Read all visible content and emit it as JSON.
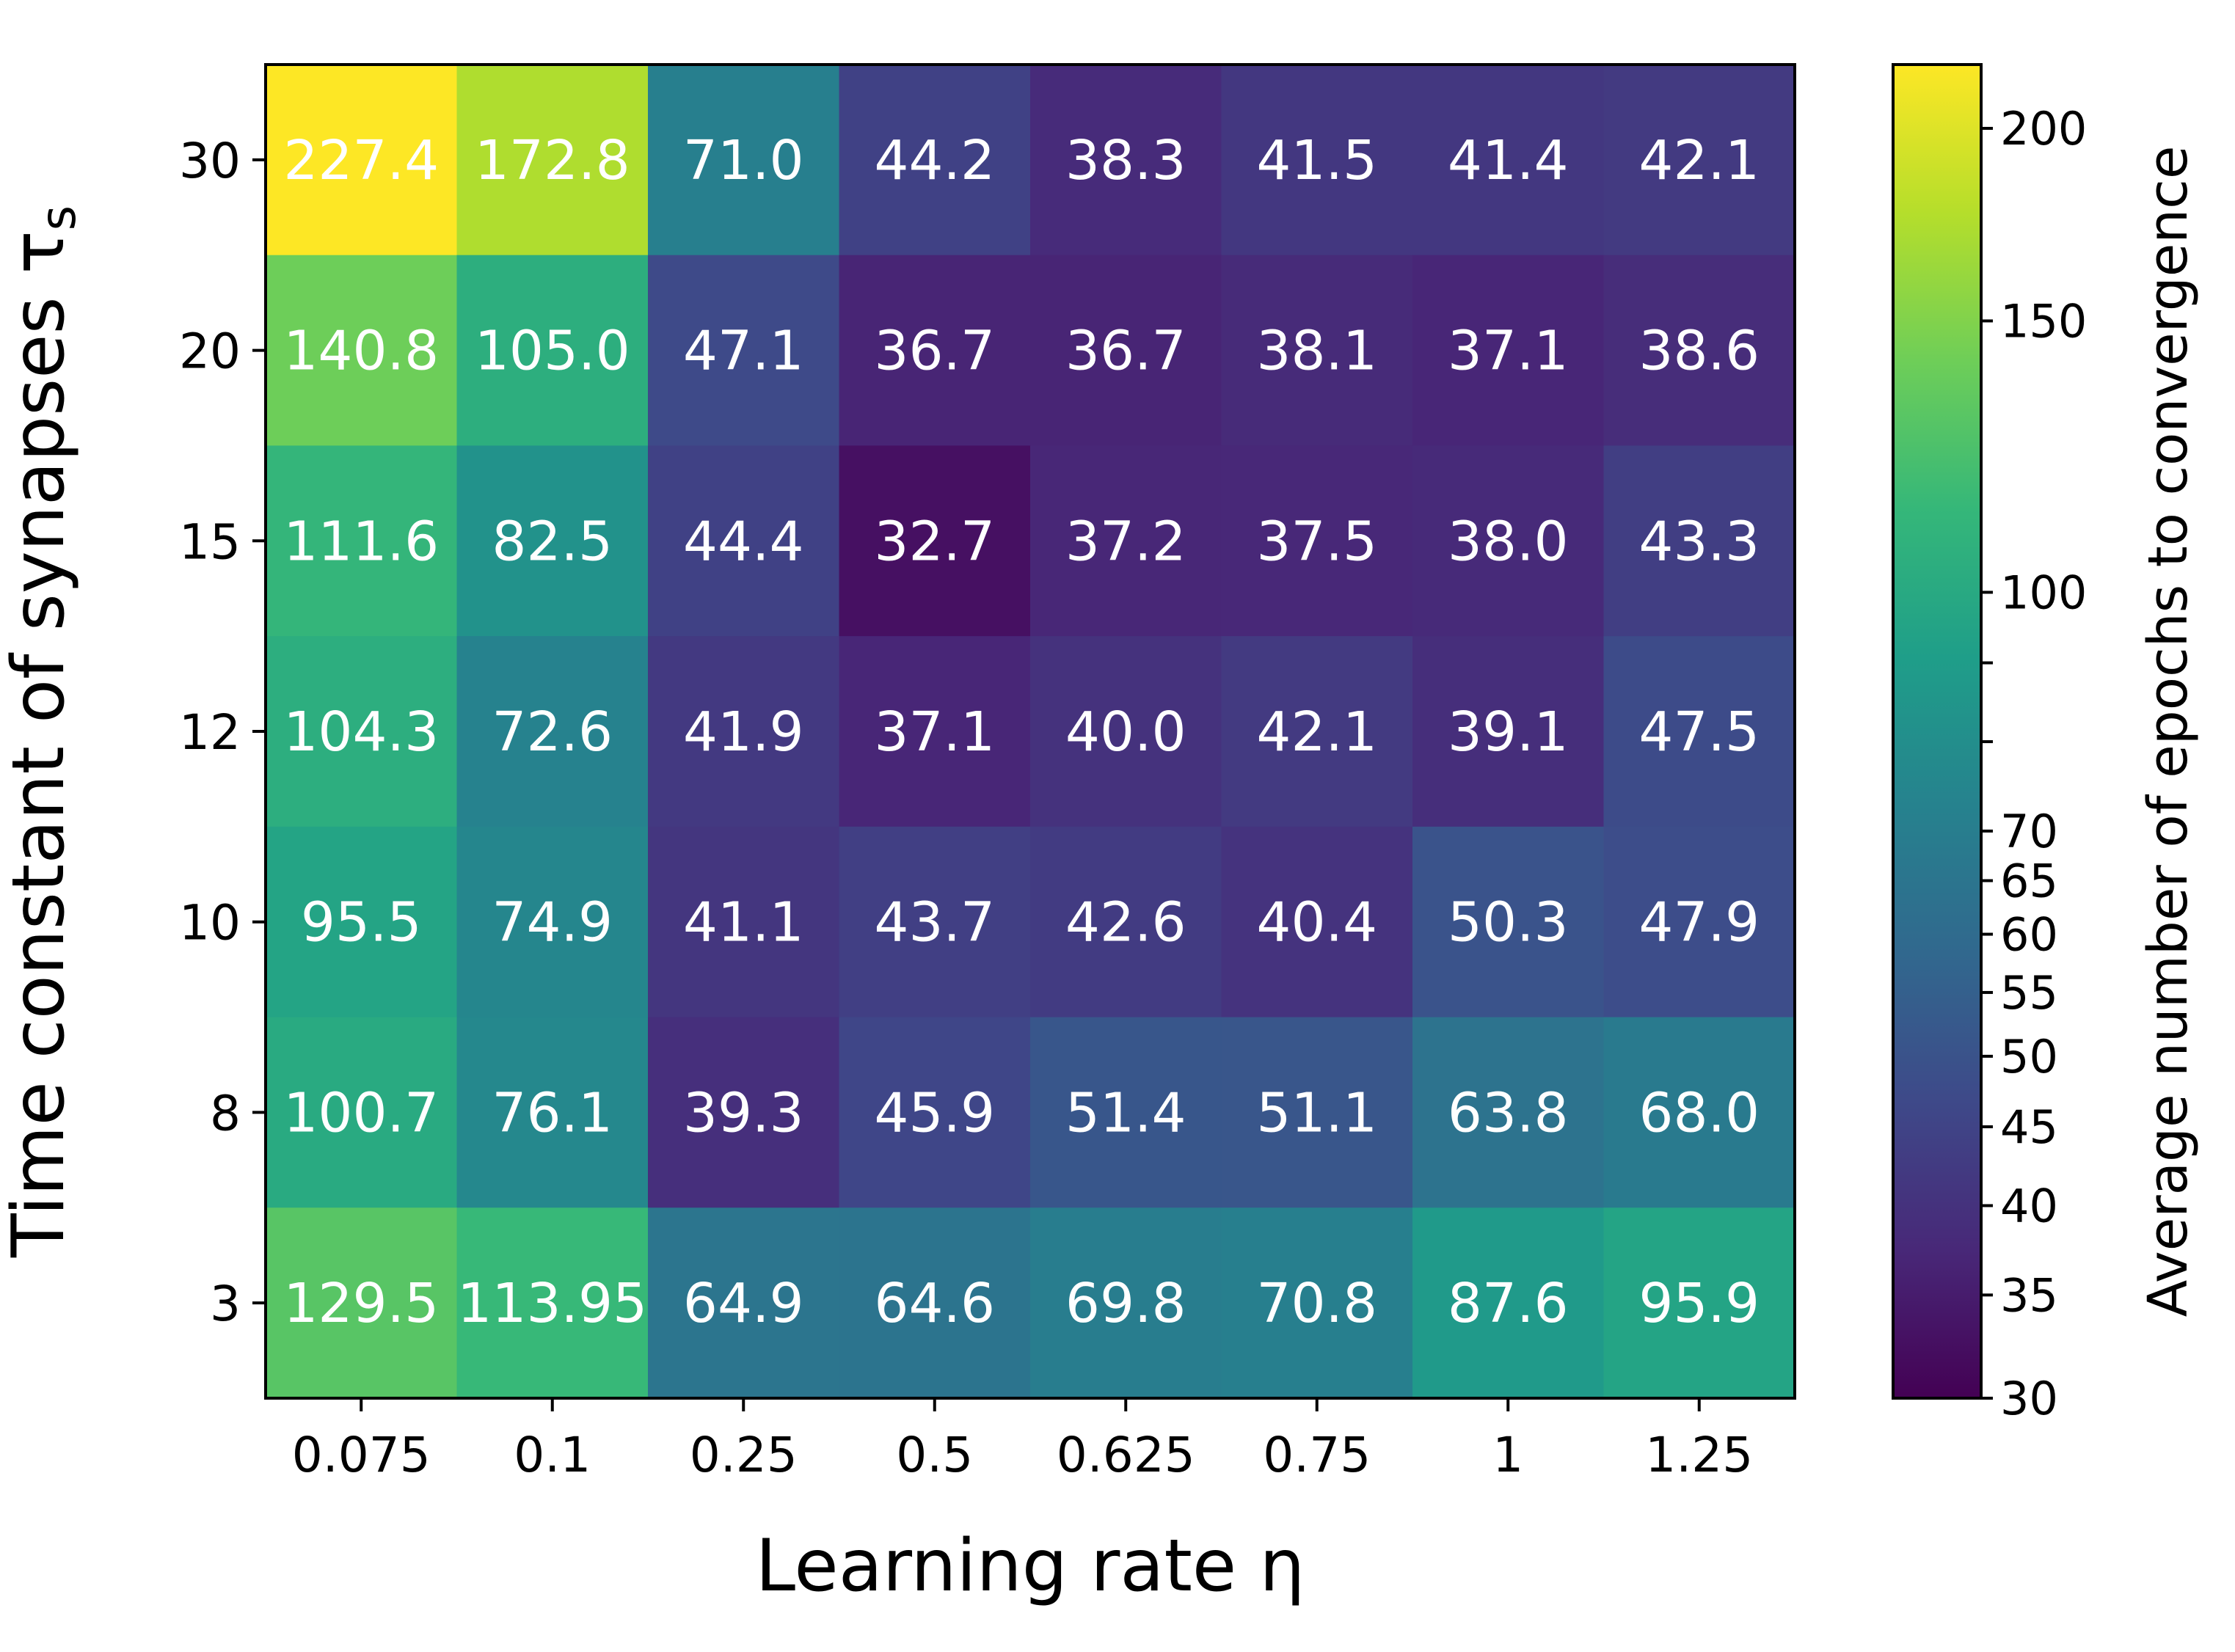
{
  "chart_data": {
    "type": "heatmap",
    "title": "",
    "xlabel": "Learning rate η",
    "ylabel": "Time constant of synapses τ",
    "ylabel_sub": "s",
    "x_categories": [
      "0.075",
      "0.1",
      "0.25",
      "0.5",
      "0.625",
      "0.75",
      "1",
      "1.25"
    ],
    "y_categories": [
      "30",
      "20",
      "15",
      "12",
      "10",
      "8",
      "3"
    ],
    "values": [
      [
        227.4,
        172.8,
        71.0,
        44.2,
        38.3,
        41.5,
        41.4,
        42.1
      ],
      [
        140.8,
        105.0,
        47.1,
        36.7,
        36.7,
        38.1,
        37.1,
        38.6
      ],
      [
        111.6,
        82.5,
        44.4,
        32.7,
        37.2,
        37.5,
        38.0,
        43.3
      ],
      [
        104.3,
        72.6,
        41.9,
        37.1,
        40.0,
        42.1,
        39.1,
        47.5
      ],
      [
        95.5,
        74.9,
        41.1,
        43.7,
        42.6,
        40.4,
        50.3,
        47.9
      ],
      [
        100.7,
        76.1,
        39.3,
        45.9,
        51.4,
        51.1,
        63.8,
        68.0
      ],
      [
        129.5,
        113.95,
        64.9,
        64.6,
        69.8,
        70.8,
        87.6,
        95.9
      ]
    ],
    "cell_labels": [
      [
        "227.4",
        "172.8",
        "71.0",
        "44.2",
        "38.3",
        "41.5",
        "41.4",
        "42.1"
      ],
      [
        "140.8",
        "105.0",
        "47.1",
        "36.7",
        "36.7",
        "38.1",
        "37.1",
        "38.6"
      ],
      [
        "111.6",
        "82.5",
        "44.4",
        "32.7",
        "37.2",
        "37.5",
        "38.0",
        "43.3"
      ],
      [
        "104.3",
        "72.6",
        "41.9",
        "37.1",
        "40.0",
        "42.1",
        "39.1",
        "47.5"
      ],
      [
        "95.5",
        "74.9",
        "41.1",
        "43.7",
        "42.6",
        "40.4",
        "50.3",
        "47.9"
      ],
      [
        "100.7",
        "76.1",
        "39.3",
        "45.9",
        "51.4",
        "51.1",
        "63.8",
        "68.0"
      ],
      [
        "129.5",
        "113.95",
        "64.9",
        "64.6",
        "69.8",
        "70.8",
        "87.6",
        "95.9"
      ]
    ],
    "colorbar": {
      "label": "Average number of epochs to convergence",
      "scale": "log",
      "range": [
        30,
        220
      ],
      "ticks": [
        30,
        35,
        40,
        45,
        50,
        55,
        60,
        65,
        70,
        80,
        90,
        100,
        150,
        200
      ],
      "tick_labels": [
        "30",
        "35",
        "40",
        "45",
        "50",
        "55",
        "60",
        "65",
        "70",
        "",
        "",
        "100",
        "150",
        "200"
      ]
    },
    "colormap": "viridis",
    "colormap_stops": [
      "#440154",
      "#482878",
      "#3e4989",
      "#31688e",
      "#26828e",
      "#1f9e89",
      "#35b779",
      "#6ece58",
      "#b5de2b",
      "#fde725"
    ],
    "grid": false,
    "legend": "none"
  }
}
